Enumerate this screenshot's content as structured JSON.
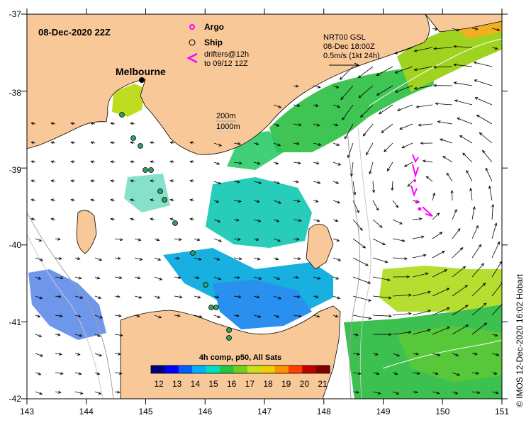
{
  "datetime": "08-Dec-2020 22Z",
  "city": "Melbourne",
  "legend": {
    "argo": "Argo",
    "ship": "Ship",
    "drifters_line1": "drifters@12h",
    "drifters_line2": "to 09/12 12Z",
    "argo_color": "#ff00ff",
    "drifter_color": "#ff00ff"
  },
  "current_info": {
    "line1": "NRT00 GSL",
    "line2": "08-Dec 18:00Z",
    "line3": "0.5m/s (1kt 24h)"
  },
  "isobaths": {
    "label1": "200m",
    "label2": "1000m"
  },
  "colorbar": {
    "title": "4h comp, p50, All Sats",
    "ticks": [
      "12",
      "13",
      "14",
      "15",
      "16",
      "17",
      "18",
      "19",
      "20",
      "21"
    ],
    "colors": [
      "#00007f",
      "#0000ff",
      "#0060ff",
      "#00b0ff",
      "#00e0c0",
      "#20c840",
      "#70d020",
      "#c8e020",
      "#f0d000",
      "#ff9000",
      "#ff4000",
      "#c00000",
      "#800000"
    ]
  },
  "axes": {
    "lon_labels": [
      "143",
      "144",
      "145",
      "146",
      "147",
      "148",
      "149",
      "150",
      "151"
    ],
    "lat_labels": [
      "-37",
      "-38",
      "-39",
      "-40",
      "-41",
      "-42"
    ]
  },
  "credit": "© IMOS 12-Dec-2020 16:02 Hobart"
}
